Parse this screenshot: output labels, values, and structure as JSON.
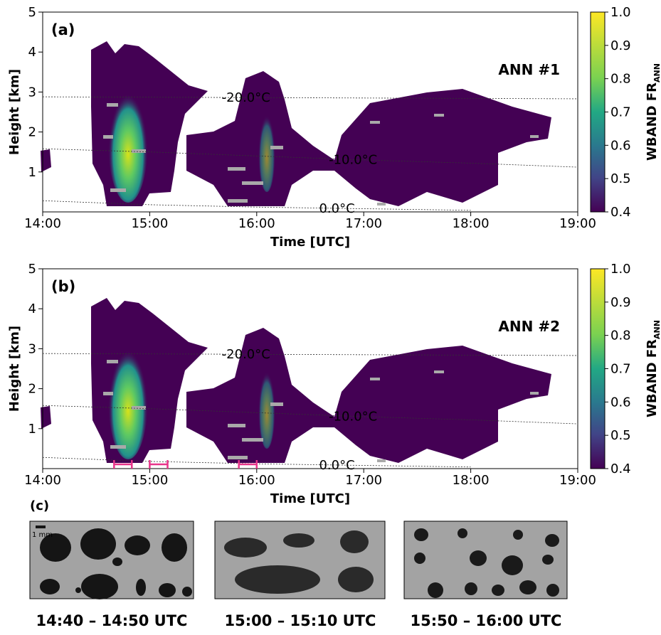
{
  "chart_data": [
    {
      "type": "line",
      "panel_label": "(a)",
      "annotation": "ANN #1",
      "x_label": "Time [UTC]",
      "y_label": "Height [km]",
      "colorbar_label": "WBAND FR",
      "colorbar_label_sub": "ANN",
      "xlim": [
        14,
        19
      ],
      "ylim": [
        0,
        5
      ],
      "xticks": [
        {
          "value": 14,
          "label": "14:00"
        },
        {
          "value": 15,
          "label": "15:00"
        },
        {
          "value": 16,
          "label": "16:00"
        },
        {
          "value": 17,
          "label": "17:00"
        },
        {
          "value": 18,
          "label": "18:00"
        },
        {
          "value": 19,
          "label": "19:00"
        }
      ],
      "yticks": [
        1,
        2,
        3,
        4,
        5
      ],
      "clim": [
        0.4,
        1.0
      ],
      "cticks": [
        {
          "value": 0.4,
          "label": "0.4"
        },
        {
          "value": 0.5,
          "label": "0.5"
        },
        {
          "value": 0.6,
          "label": "0.6"
        },
        {
          "value": 0.7,
          "label": "0.7"
        },
        {
          "value": 0.8,
          "label": "0.8"
        },
        {
          "value": 0.9,
          "label": "0.9"
        },
        {
          "value": 1,
          "label": "1.0"
        }
      ],
      "x": [
        14,
        15,
        16,
        17,
        18,
        19
      ],
      "series": [
        {
          "name": "-20.0°C",
          "color": "#333333",
          "values": [
            2.88,
            2.87,
            2.86,
            2.85,
            2.84,
            2.83
          ]
        },
        {
          "name": "-10.0°C",
          "color": "#333333",
          "values": [
            1.58,
            1.5,
            1.4,
            1.3,
            1.22,
            1.12
          ]
        },
        {
          "name": "0.0°C",
          "color": "#333333",
          "values": [
            0.28,
            0.18,
            0.12,
            0.08,
            0.04,
            null
          ]
        }
      ]
    },
    {
      "type": "line",
      "panel_label": "(b)",
      "annotation": "ANN #2",
      "x_label": "Time [UTC]",
      "y_label": "Height [km]",
      "colorbar_label": "WBAND FR",
      "colorbar_label_sub": "ANN",
      "xlim": [
        14,
        19
      ],
      "ylim": [
        0,
        5
      ],
      "xticks": [
        {
          "value": 14,
          "label": "14:00"
        },
        {
          "value": 15,
          "label": "15:00"
        },
        {
          "value": 16,
          "label": "16:00"
        },
        {
          "value": 17,
          "label": "17:00"
        },
        {
          "value": 18,
          "label": "18:00"
        },
        {
          "value": 19,
          "label": "19:00"
        }
      ],
      "yticks": [
        1,
        2,
        3,
        4,
        5
      ],
      "clim": [
        0.4,
        1.0
      ],
      "cticks": [
        {
          "value": 0.4,
          "label": "0.4"
        },
        {
          "value": 0.5,
          "label": "0.5"
        },
        {
          "value": 0.6,
          "label": "0.6"
        },
        {
          "value": 0.7,
          "label": "0.7"
        },
        {
          "value": 0.8,
          "label": "0.8"
        },
        {
          "value": 0.9,
          "label": "0.9"
        },
        {
          "value": 1,
          "label": "1.0"
        }
      ],
      "x": [
        14,
        15,
        16,
        17,
        18,
        19
      ],
      "series": [
        {
          "name": "-20.0°C",
          "color": "#333333",
          "values": [
            2.88,
            2.87,
            2.86,
            2.85,
            2.84,
            2.83
          ]
        },
        {
          "name": "-10.0°C",
          "color": "#333333",
          "values": [
            1.58,
            1.5,
            1.4,
            1.3,
            1.22,
            1.12
          ]
        },
        {
          "name": "0.0°C",
          "color": "#333333",
          "values": [
            0.28,
            0.18,
            0.12,
            0.08,
            0.04,
            null
          ]
        }
      ],
      "intervals": [
        [
          14.667,
          14.833
        ],
        [
          15,
          15.167
        ],
        [
          15.833,
          16
        ]
      ],
      "interval_color": "#e8348a"
    }
  ],
  "panel_c": {
    "label": "(c)",
    "scale": "1 mm",
    "captions": [
      "14:40 – 14:50 UTC",
      "15:00 – 15:10 UTC",
      "15:50 – 16:00 UTC"
    ]
  }
}
